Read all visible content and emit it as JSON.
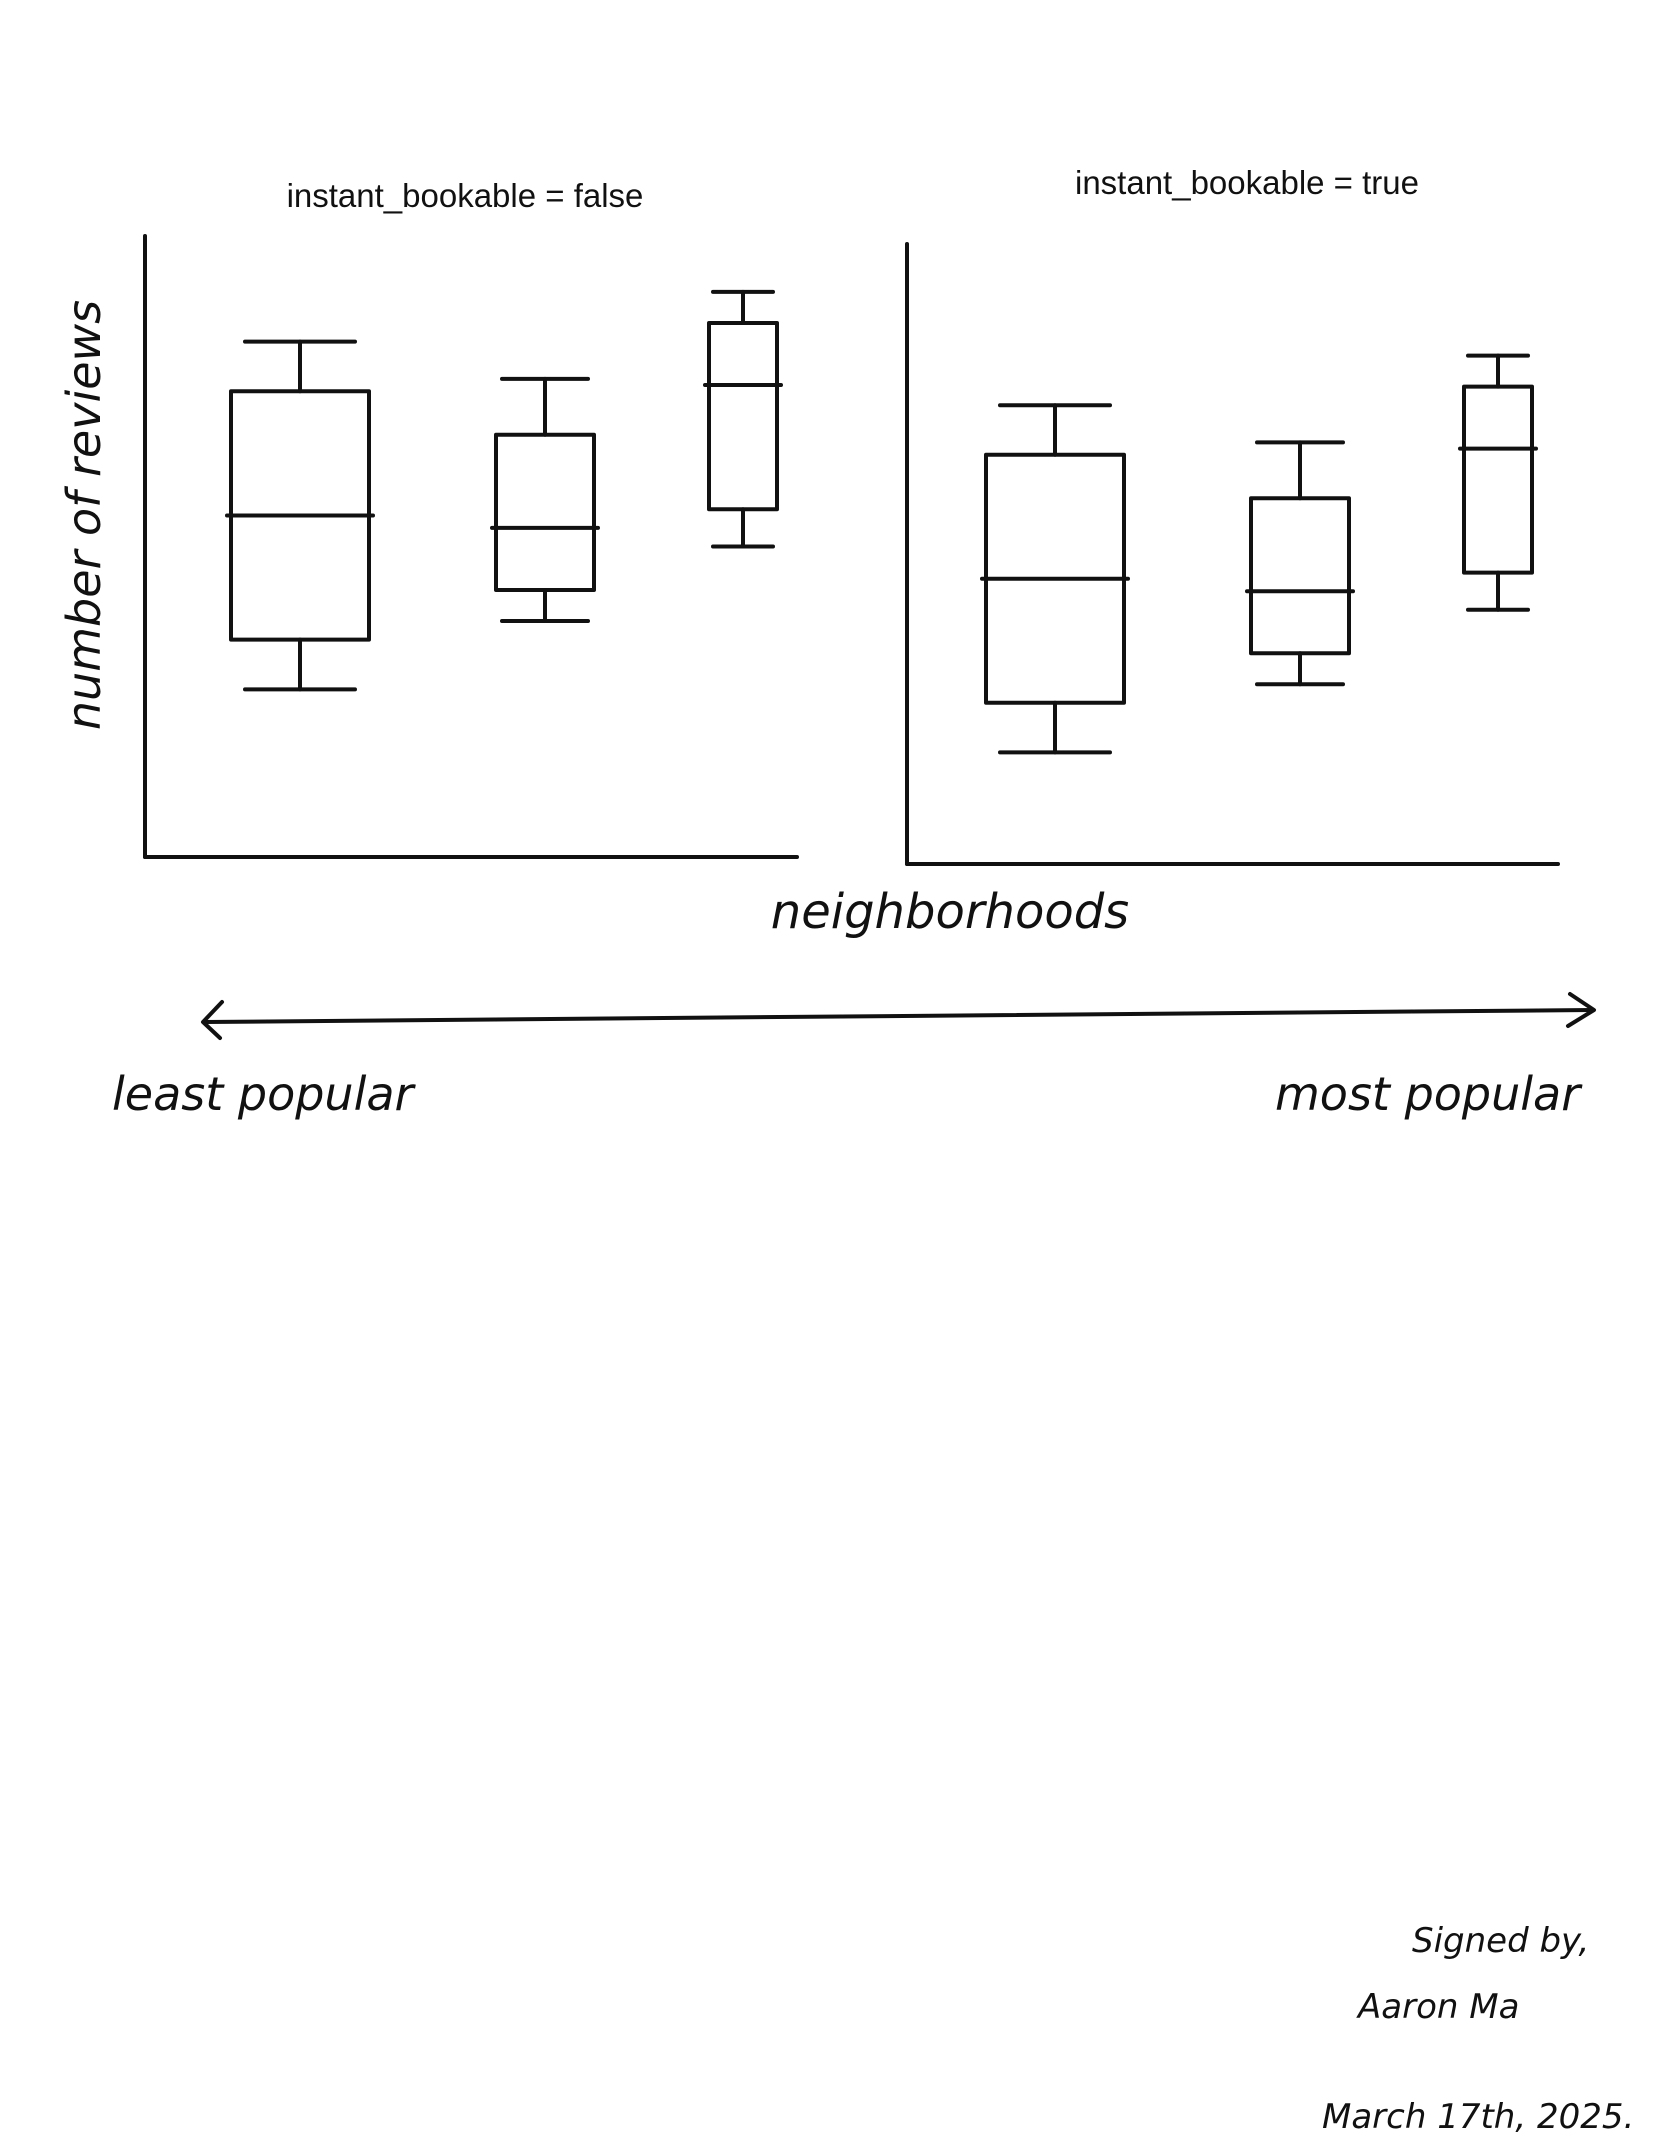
{
  "chart_data": [
    {
      "type": "box",
      "title": "instant_bookable = false",
      "ylabel": "number of reviews",
      "categories": [
        "",
        "",
        ""
      ],
      "boxes": [
        {
          "whisker_low": 0.27,
          "q1": 0.35,
          "median": 0.55,
          "q3": 0.75,
          "whisker_high": 0.83
        },
        {
          "whisker_low": 0.38,
          "q1": 0.43,
          "median": 0.53,
          "q3": 0.68,
          "whisker_high": 0.77
        },
        {
          "whisker_low": 0.5,
          "q1": 0.56,
          "median": 0.76,
          "q3": 0.86,
          "whisker_high": 0.91
        }
      ],
      "ylim": [
        0,
        1
      ]
    },
    {
      "type": "box",
      "title": "instant_bookable = true",
      "categories": [
        "",
        "",
        ""
      ],
      "boxes": [
        {
          "whisker_low": 0.18,
          "q1": 0.26,
          "median": 0.46,
          "q3": 0.66,
          "whisker_high": 0.74
        },
        {
          "whisker_low": 0.29,
          "q1": 0.34,
          "median": 0.44,
          "q3": 0.59,
          "whisker_high": 0.68
        },
        {
          "whisker_low": 0.41,
          "q1": 0.47,
          "median": 0.67,
          "q3": 0.77,
          "whisker_high": 0.82
        }
      ],
      "ylim": [
        0,
        1
      ]
    }
  ],
  "xlabel": "neighborhoods",
  "scale": {
    "left_label": "least popular",
    "right_label": "most popular"
  },
  "signature": {
    "line1": "Signed by,",
    "line2": "Aaron Ma",
    "line3": "March 17th, 2025."
  }
}
